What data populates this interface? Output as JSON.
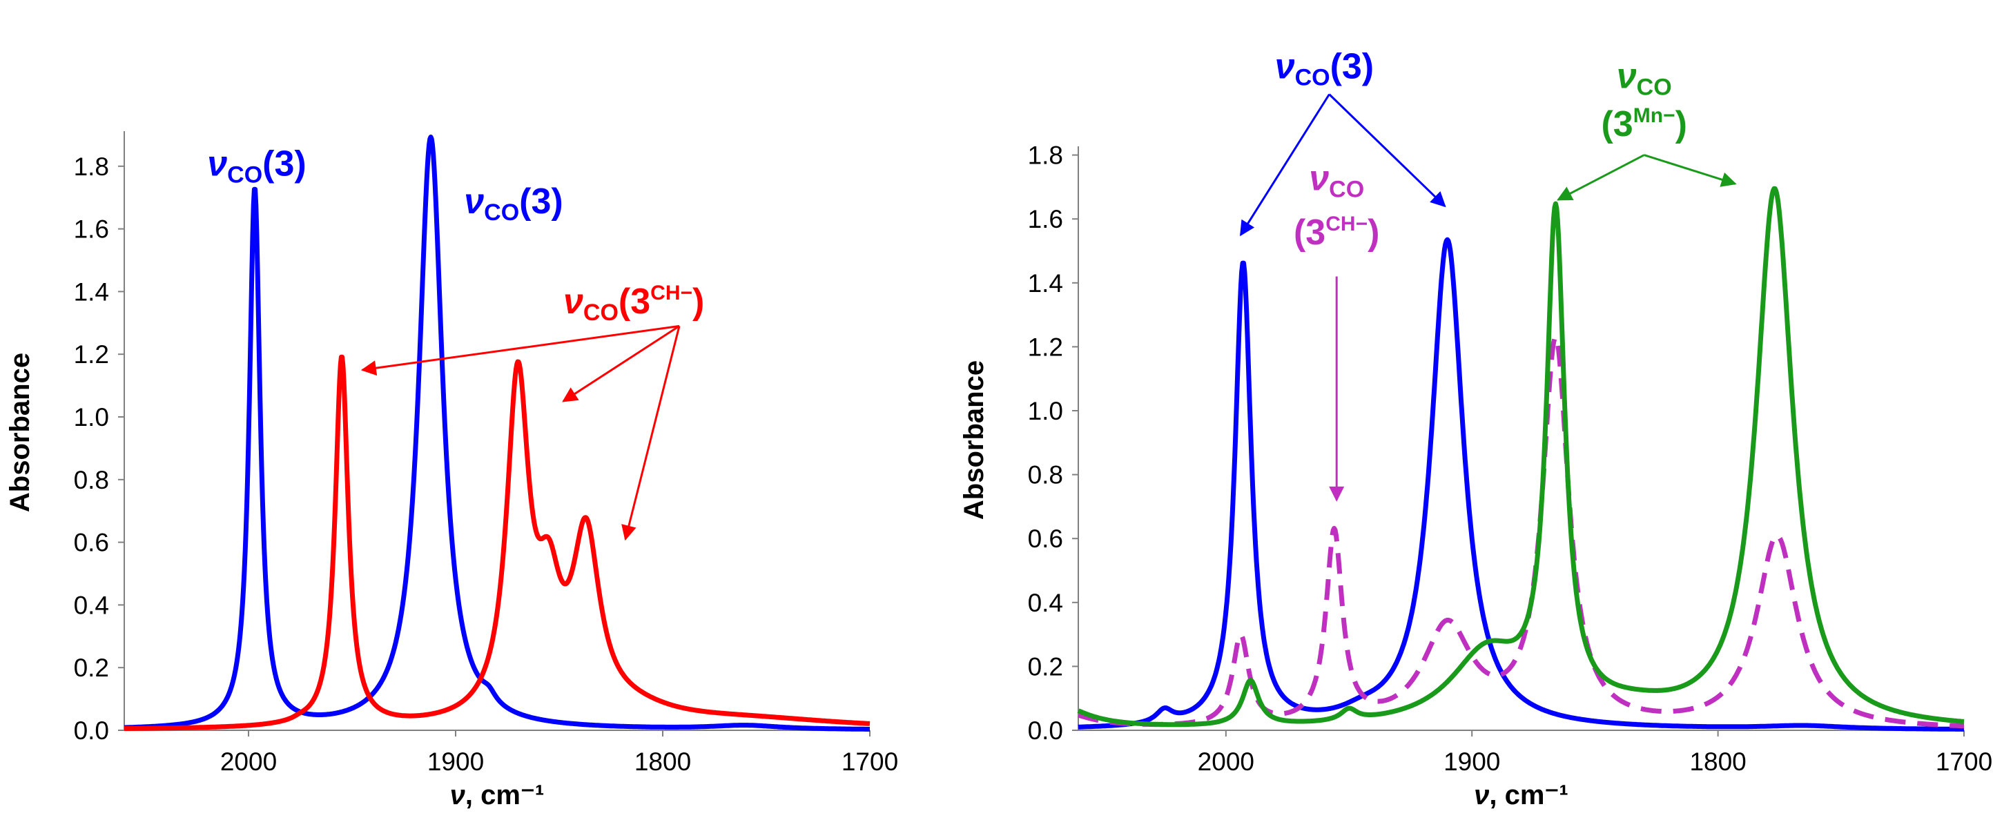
{
  "chart_data": [
    {
      "type": "line",
      "panel": "left",
      "xlabel": {
        "symbol": "ν",
        "unit": ", cm⁻¹"
      },
      "ylabel": "Absorbance",
      "xlim": [
        2060,
        1700
      ],
      "ylim": [
        0,
        1.9
      ],
      "xticks": [
        {
          "v": 2000,
          "label": "2000"
        },
        {
          "v": 1900,
          "label": "1900"
        },
        {
          "v": 1800,
          "label": "1800"
        },
        {
          "v": 1700,
          "label": "1700"
        }
      ],
      "yticks": [
        {
          "v": 0,
          "label": "0.0"
        },
        {
          "v": 0.2,
          "label": "0.2"
        },
        {
          "v": 0.4,
          "label": "0.4"
        },
        {
          "v": 0.6,
          "label": "0.6"
        },
        {
          "v": 0.8,
          "label": "0.8"
        },
        {
          "v": 1.0,
          "label": "1.0"
        },
        {
          "v": 1.2,
          "label": "1.2"
        },
        {
          "v": 1.4,
          "label": "1.4"
        },
        {
          "v": 1.6,
          "label": "1.6"
        },
        {
          "v": 1.8,
          "label": "1.8"
        }
      ],
      "series": [
        {
          "name": "3",
          "color": "#0000ff",
          "dash": false,
          "peaks": [
            {
              "center": 1997,
              "amp": 1.72,
              "width": 3.2
            },
            {
              "center": 1912,
              "amp": 1.89,
              "width": 7
            },
            {
              "center": 1884,
              "amp": 0.03,
              "width": 4
            },
            {
              "center": 1760,
              "amp": 0.012,
              "width": 20
            }
          ]
        },
        {
          "name": "3CH-",
          "color": "#ff0000",
          "dash": false,
          "peaks": [
            {
              "center": 1975,
              "amp": 0.005,
              "width": 4
            },
            {
              "center": 1955,
              "amp": 1.18,
              "width": 3.8
            },
            {
              "center": 1870,
              "amp": 1.07,
              "width": 6.5
            },
            {
              "center": 1855,
              "amp": 0.33,
              "width": 7
            },
            {
              "center": 1837,
              "amp": 0.56,
              "width": 8
            },
            {
              "center": 1815,
              "amp": 0.04,
              "width": 25
            },
            {
              "center": 1760,
              "amp": 0.03,
              "width": 60
            }
          ]
        }
      ],
      "annotations": [
        {
          "kind": "nu",
          "sub": "CO",
          "tail": "(3)",
          "color": "#0000ff",
          "x": 1996,
          "y": 1.77,
          "anchor": "middle"
        },
        {
          "kind": "nu",
          "sub": "CO",
          "tail": "(3)",
          "color": "#0000ff",
          "x": 1872,
          "y": 1.65,
          "anchor": "middle"
        },
        {
          "kind": "nu",
          "sub": "CO",
          "tail": "(3",
          "sup": "CH−",
          "close": ")",
          "color": "#ff0000",
          "x": 1848,
          "y": 1.33,
          "anchor": "start"
        }
      ],
      "arrows": [
        {
          "color": "#ff0000",
          "from": [
            1792,
            1.29
          ],
          "to": [
            1945,
            1.15
          ]
        },
        {
          "color": "#ff0000",
          "from": [
            1792,
            1.29
          ],
          "to": [
            1848,
            1.05
          ]
        },
        {
          "color": "#ff0000",
          "from": [
            1792,
            1.29
          ],
          "to": [
            1818,
            0.61
          ]
        }
      ]
    },
    {
      "type": "line",
      "panel": "right",
      "xlabel": {
        "symbol": "ν",
        "unit": ", cm⁻¹"
      },
      "ylabel": "Absorbance",
      "xlim": [
        2060,
        1700
      ],
      "ylim": [
        0,
        1.8
      ],
      "xticks": [
        {
          "v": 2000,
          "label": "2000"
        },
        {
          "v": 1900,
          "label": "1900"
        },
        {
          "v": 1800,
          "label": "1800"
        },
        {
          "v": 1700,
          "label": "1700"
        }
      ],
      "yticks": [
        {
          "v": 0,
          "label": "0.0"
        },
        {
          "v": 0.2,
          "label": "0.2"
        },
        {
          "v": 0.4,
          "label": "0.4"
        },
        {
          "v": 0.6,
          "label": "0.6"
        },
        {
          "v": 0.8,
          "label": "0.8"
        },
        {
          "v": 1.0,
          "label": "1.0"
        },
        {
          "v": 1.2,
          "label": "1.2"
        },
        {
          "v": 1.4,
          "label": "1.4"
        },
        {
          "v": 1.6,
          "label": "1.6"
        },
        {
          "v": 1.8,
          "label": "1.8"
        }
      ],
      "series": [
        {
          "name": "3",
          "color": "#0000ff",
          "dash": false,
          "peaks": [
            {
              "center": 2025,
              "amp": 0.04,
              "width": 4
            },
            {
              "center": 1993,
              "amp": 1.45,
              "width": 4
            },
            {
              "center": 1910,
              "amp": 1.53,
              "width": 8
            },
            {
              "center": 1945,
              "amp": 0.02,
              "width": 10
            },
            {
              "center": 1765,
              "amp": 0.01,
              "width": 20
            }
          ]
        },
        {
          "name": "3CH-",
          "color": "#c030c0",
          "dash": true,
          "peaks": [
            {
              "center": 2070,
              "amp": 0.06,
              "width": 15
            },
            {
              "center": 1994,
              "amp": 0.28,
              "width": 4
            },
            {
              "center": 1956,
              "amp": 0.6,
              "width": 4
            },
            {
              "center": 1910,
              "amp": 0.31,
              "width": 12
            },
            {
              "center": 1866,
              "amp": 1.2,
              "width": 6.5
            },
            {
              "center": 1776,
              "amp": 0.6,
              "width": 10
            }
          ]
        },
        {
          "name": "3Mn-",
          "color": "#1a9a1a",
          "dash": false,
          "peaks": [
            {
              "center": 2070,
              "amp": 0.08,
              "width": 15
            },
            {
              "center": 1990,
              "amp": 0.14,
              "width": 4
            },
            {
              "center": 1950,
              "amp": 0.035,
              "width": 4
            },
            {
              "center": 1894,
              "amp": 0.22,
              "width": 18
            },
            {
              "center": 1866,
              "amp": 1.55,
              "width": 4.5
            },
            {
              "center": 1777,
              "amp": 1.68,
              "width": 9
            },
            {
              "center": 1835,
              "amp": 0.04,
              "width": 25
            }
          ]
        }
      ],
      "annotations": [
        {
          "kind": "nu",
          "sub": "CO",
          "tail": "(3)",
          "color": "#0000ff",
          "x": 1960,
          "y": 2.04,
          "anchor": "middle"
        },
        {
          "kind": "stack",
          "sub": "CO",
          "sup": "CH−",
          "color": "#c030c0",
          "x": 1955,
          "y1": 1.69,
          "y2": 1.52
        },
        {
          "kind": "stack",
          "sub": "CO",
          "sup": "Mn−",
          "color": "#1a9a1a",
          "x": 1830,
          "y1": 2.01,
          "y2": 1.86
        }
      ],
      "arrows": [
        {
          "color": "#0000ff",
          "from": [
            1958,
            1.99
          ],
          "to": [
            1994,
            1.55
          ]
        },
        {
          "color": "#0000ff",
          "from": [
            1958,
            1.99
          ],
          "to": [
            1911,
            1.64
          ]
        },
        {
          "color": "#c030c0",
          "from": [
            1955,
            1.42
          ],
          "to": [
            1955,
            0.72
          ]
        },
        {
          "color": "#1a9a1a",
          "from": [
            1830,
            1.8
          ],
          "to": [
            1865,
            1.66
          ]
        },
        {
          "color": "#1a9a1a",
          "from": [
            1830,
            1.8
          ],
          "to": [
            1793,
            1.71
          ]
        }
      ]
    }
  ]
}
